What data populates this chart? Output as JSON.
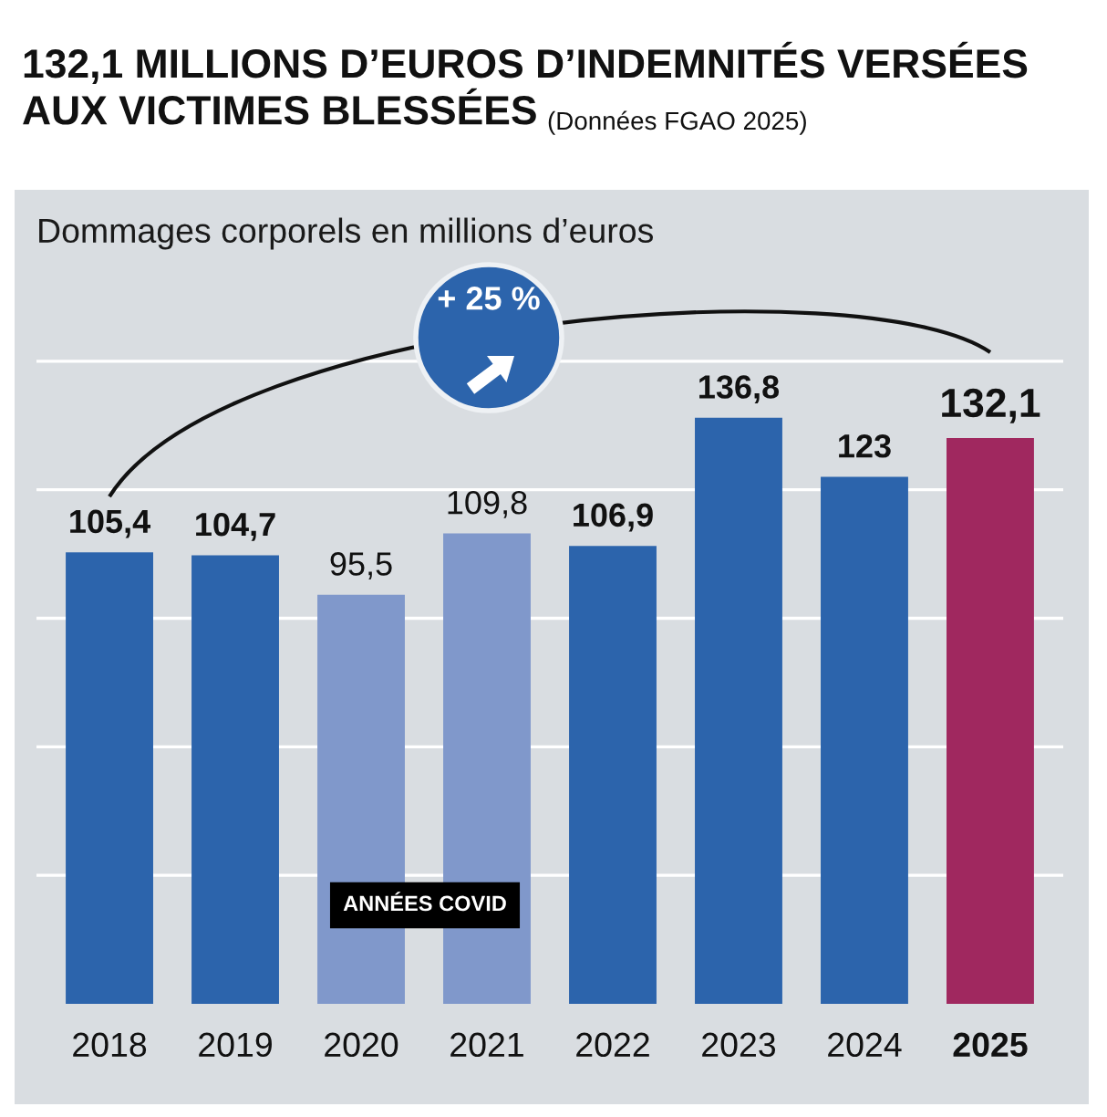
{
  "chart_data": {
    "type": "bar",
    "title": "132,1 MILLIONS D’EUROS D’INDEMNITÉS VERSÉES AUX VICTIMES BLESSÉES",
    "ylabel": "Dommages corporels en millions d’euros",
    "categories": [
      "2018",
      "2019",
      "2020",
      "2021",
      "2022",
      "2023",
      "2024",
      "2025"
    ],
    "values": [
      105.4,
      104.7,
      95.5,
      109.8,
      106.9,
      136.8,
      123,
      132.1
    ],
    "colors": [
      "#2c64ac",
      "#2c64ac",
      "#8098cb",
      "#8098cb",
      "#2c64ac",
      "#2c64ac",
      "#2c64ac",
      "#a0285f"
    ],
    "value_labels": [
      "105,4",
      "104,7",
      "95,5",
      "109,8",
      "106,9",
      "136,8",
      "123",
      "132,1"
    ],
    "annotations": [
      "(Données FGAO 2025)",
      "+ 25 %",
      "ANNÉES COVID"
    ],
    "yticks": [
      {
        "value": 30,
        "label": null
      },
      {
        "value": 60,
        "label": null
      },
      {
        "value": 90,
        "label": null
      },
      {
        "value": 120,
        "label": null
      },
      {
        "value": 150,
        "label": null
      }
    ],
    "grid": "y",
    "tick_labels": "x"
  }
}
